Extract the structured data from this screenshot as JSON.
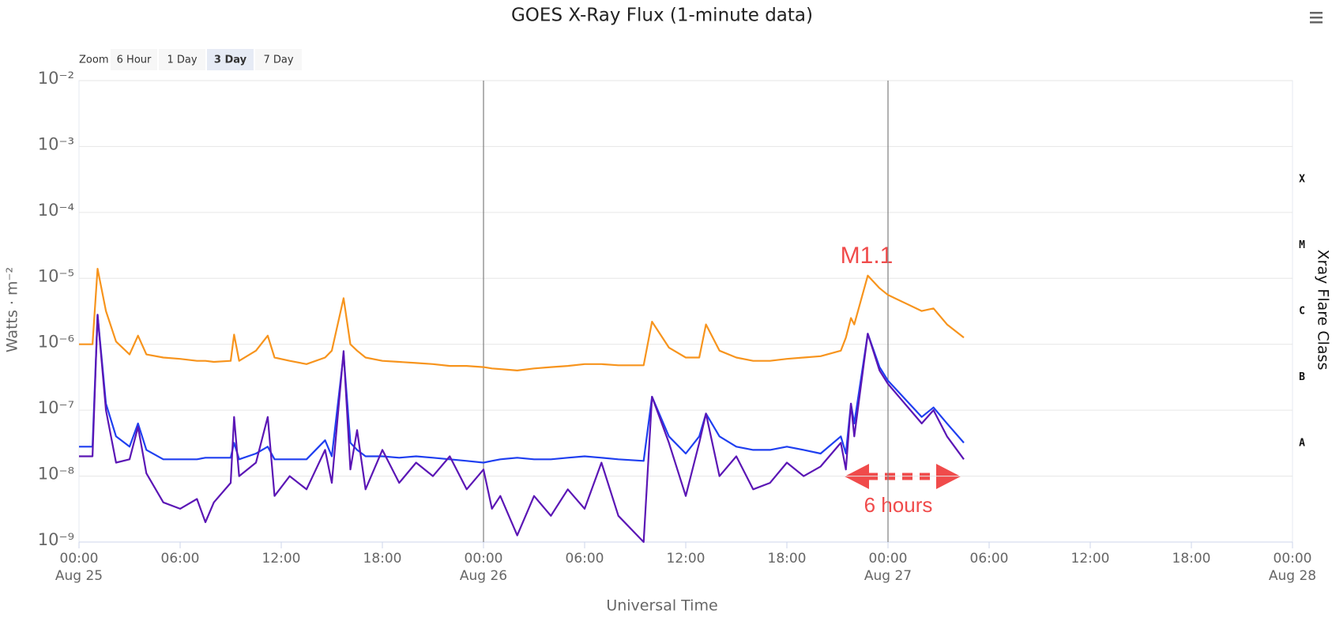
{
  "chart_data": {
    "type": "line",
    "title": "GOES X-Ray Flux (1-minute data)",
    "xlabel": "Universal Time",
    "ylabel": "Watts · m⁻²",
    "y2label": "Xray Flare Class",
    "range_selector": {
      "label": "Zoom",
      "buttons": [
        "6 Hour",
        "1 Day",
        "3 Day",
        "7 Day"
      ],
      "selected": 2
    },
    "annotations": [
      "M1.1",
      "6 hours"
    ],
    "ylog": true,
    "grid": true,
    "ylim": [
      1e-09,
      0.01
    ],
    "yticks": [
      {
        "value": 1e-09,
        "label": "10⁻⁹"
      },
      {
        "value": 1e-08,
        "label": "10⁻⁸"
      },
      {
        "value": 1e-07,
        "label": "10⁻⁷"
      },
      {
        "value": 1e-06,
        "label": "10⁻⁶"
      },
      {
        "value": 1e-05,
        "label": "10⁻⁵"
      },
      {
        "value": 0.0001,
        "label": "10⁻⁴"
      },
      {
        "value": 0.001,
        "label": "10⁻³"
      },
      {
        "value": 0.01,
        "label": "10⁻²"
      }
    ],
    "y2lim": [
      1e-09,
      0.01
    ],
    "y2ticks": [
      {
        "value": 1e-08,
        "label": "A"
      },
      {
        "value": 1e-07,
        "label": "B"
      },
      {
        "value": 1e-06,
        "label": "C"
      },
      {
        "value": 1e-05,
        "label": "M"
      },
      {
        "value": 0.0001,
        "label": "X"
      }
    ],
    "xlim": [
      "Aug 25 00:00",
      "Aug 28 00:00"
    ],
    "xticks": [
      {
        "value": "Aug 25 00:00",
        "label": [
          "00:00",
          "Aug 25"
        ]
      },
      {
        "value": "Aug 25 06:00",
        "label": "06:00"
      },
      {
        "value": "Aug 25 12:00",
        "label": "12:00"
      },
      {
        "value": "Aug 25 18:00",
        "label": "18:00"
      },
      {
        "value": "Aug 26 00:00",
        "label": [
          "00:00",
          "Aug 26"
        ]
      },
      {
        "value": "Aug 26 06:00",
        "label": "06:00"
      },
      {
        "value": "Aug 26 12:00",
        "label": "12:00"
      },
      {
        "value": "Aug 26 18:00",
        "label": "18:00"
      },
      {
        "value": "Aug 27 00:00",
        "label": [
          "00:00",
          "Aug 27"
        ]
      },
      {
        "value": "Aug 27 06:00",
        "label": "06:00"
      },
      {
        "value": "Aug 27 12:00",
        "label": "12:00"
      },
      {
        "value": "Aug 27 18:00",
        "label": "18:00"
      },
      {
        "value": "Aug 28 00:00",
        "label": [
          "00:00",
          "Aug 28"
        ]
      }
    ],
    "x_plot_lines": [
      "Aug 26 00:00",
      "Aug 27 00:00"
    ],
    "x": [
      "Aug 25 00:00",
      "Aug 25 00:48",
      "Aug 25 01:06",
      "Aug 25 01:36",
      "Aug 25 02:12",
      "Aug 25 03:00",
      "Aug 25 03:30",
      "Aug 25 04:00",
      "Aug 25 05:00",
      "Aug 25 06:00",
      "Aug 25 07:00",
      "Aug 25 07:30",
      "Aug 25 08:00",
      "Aug 25 09:00",
      "Aug 25 09:12",
      "Aug 25 09:30",
      "Aug 25 10:30",
      "Aug 25 11:12",
      "Aug 25 11:36",
      "Aug 25 12:30",
      "Aug 25 13:30",
      "Aug 25 14:36",
      "Aug 25 15:00",
      "Aug 25 15:42",
      "Aug 25 16:06",
      "Aug 25 16:30",
      "Aug 25 17:00",
      "Aug 25 18:00",
      "Aug 25 19:00",
      "Aug 25 20:00",
      "Aug 25 21:00",
      "Aug 25 22:00",
      "Aug 25 23:00",
      "Aug 26 00:00",
      "Aug 26 00:30",
      "Aug 26 01:00",
      "Aug 26 02:00",
      "Aug 26 03:00",
      "Aug 26 04:00",
      "Aug 26 05:00",
      "Aug 26 06:00",
      "Aug 26 07:00",
      "Aug 26 08:00",
      "Aug 26 09:30",
      "Aug 26 10:00",
      "Aug 26 11:00",
      "Aug 26 12:00",
      "Aug 26 12:48",
      "Aug 26 13:12",
      "Aug 26 14:00",
      "Aug 26 15:00",
      "Aug 26 16:00",
      "Aug 26 17:00",
      "Aug 26 18:00",
      "Aug 26 19:00",
      "Aug 26 20:00",
      "Aug 26 21:12",
      "Aug 26 21:30",
      "Aug 26 21:48",
      "Aug 26 22:00",
      "Aug 26 22:48",
      "Aug 26 23:30",
      "Aug 27 00:00",
      "Aug 27 02:00",
      "Aug 27 02:42",
      "Aug 27 03:30",
      "Aug 27 04:30"
    ],
    "series": [
      {
        "color": "#f7941d",
        "values": [
          1e-06,
          1e-06,
          1.4e-05,
          3.2e-06,
          1.1e-06,
          7e-07,
          1.35e-06,
          7e-07,
          6.3e-07,
          6e-07,
          5.6e-07,
          5.6e-07,
          5.4e-07,
          5.6e-07,
          1.4e-06,
          5.6e-07,
          8e-07,
          1.35e-06,
          6.3e-07,
          5.6e-07,
          5e-07,
          6.3e-07,
          8e-07,
          5e-06,
          1e-06,
          8e-07,
          6.3e-07,
          5.6e-07,
          5.4e-07,
          5.2e-07,
          5e-07,
          4.7e-07,
          4.7e-07,
          4.5e-07,
          4.3e-07,
          4.2e-07,
          4e-07,
          4.3e-07,
          4.5e-07,
          4.7e-07,
          5e-07,
          5e-07,
          4.8e-07,
          4.8e-07,
          2.2e-06,
          8.9e-07,
          6.3e-07,
          6.3e-07,
          2e-06,
          8e-07,
          6.3e-07,
          5.6e-07,
          5.6e-07,
          6e-07,
          6.3e-07,
          6.6e-07,
          8e-07,
          1.26e-06,
          2.5e-06,
          2e-06,
          1.1e-05,
          7.1e-06,
          5.6e-06,
          3.2e-06,
          3.5e-06,
          2e-06,
          1.26e-06
        ]
      },
      {
        "color": "#1f3ff0",
        "values": [
          2.8e-08,
          2.8e-08,
          2.8e-06,
          1.26e-07,
          4e-08,
          2.8e-08,
          6.3e-08,
          2.5e-08,
          1.8e-08,
          1.8e-08,
          1.8e-08,
          1.9e-08,
          1.9e-08,
          1.9e-08,
          3.2e-08,
          1.8e-08,
          2.2e-08,
          2.8e-08,
          1.8e-08,
          1.8e-08,
          1.8e-08,
          3.5e-08,
          2e-08,
          7e-07,
          3.2e-08,
          2.5e-08,
          2e-08,
          2e-08,
          1.9e-08,
          2e-08,
          1.9e-08,
          1.8e-08,
          1.7e-08,
          1.6e-08,
          1.7e-08,
          1.8e-08,
          1.9e-08,
          1.8e-08,
          1.8e-08,
          1.9e-08,
          2e-08,
          1.9e-08,
          1.8e-08,
          1.7e-08,
          1.6e-07,
          4e-08,
          2.2e-08,
          4e-08,
          8.9e-08,
          4e-08,
          2.8e-08,
          2.5e-08,
          2.5e-08,
          2.8e-08,
          2.5e-08,
          2.2e-08,
          4e-08,
          2.2e-08,
          1.26e-07,
          6.3e-08,
          1.45e-06,
          4.5e-07,
          2.8e-07,
          7.9e-08,
          1.1e-07,
          6.3e-08,
          3.2e-08
        ]
      },
      {
        "color": "#5b16b5",
        "values": [
          2e-08,
          2e-08,
          2.8e-06,
          1e-07,
          1.6e-08,
          1.8e-08,
          5.6e-08,
          1.1e-08,
          4e-09,
          3.2e-09,
          4.5e-09,
          2e-09,
          4e-09,
          7.9e-09,
          7.9e-08,
          1e-08,
          1.6e-08,
          7.9e-08,
          5e-09,
          1e-08,
          6.3e-09,
          2.5e-08,
          7.9e-09,
          7.9e-07,
          1.26e-08,
          5e-08,
          6.3e-09,
          2.5e-08,
          7.9e-09,
          1.6e-08,
          1e-08,
          2e-08,
          6.3e-09,
          1.26e-08,
          3.2e-09,
          5e-09,
          1.26e-09,
          5e-09,
          2.5e-09,
          6.3e-09,
          3.2e-09,
          1.6e-08,
          2.5e-09,
          1e-09,
          1.6e-07,
          3.2e-08,
          5e-09,
          3.2e-08,
          8.9e-08,
          1e-08,
          2e-08,
          6.3e-09,
          7.9e-09,
          1.6e-08,
          1e-08,
          1.4e-08,
          3.2e-08,
          1.26e-08,
          1.26e-07,
          4e-08,
          1.45e-06,
          4e-07,
          2.5e-07,
          6.3e-08,
          1e-07,
          4e-08,
          1.8e-08
        ]
      }
    ]
  }
}
